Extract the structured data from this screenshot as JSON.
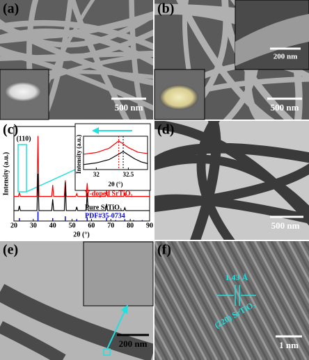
{
  "panels": [
    {
      "label": "(a)",
      "scale_bar": "500 nm"
    },
    {
      "label": "(b)",
      "scale_bar": "500 nm",
      "inset_scale_bar": "200 nm"
    },
    {
      "label": "(c)"
    },
    {
      "label": "(d)",
      "scale_bar": "500 nm"
    },
    {
      "label": "(e)",
      "scale_bar": "200 nm"
    },
    {
      "label": "(f)",
      "scale_bar": "1 nm",
      "annotations": [
        "1.43 Å",
        "(220) SrTiO₃"
      ]
    }
  ],
  "chart_data": [
    {
      "type": "line",
      "xlabel": "2θ (°)",
      "ylabel": "Intensity (a.u.)",
      "annotation": "(110)",
      "x": [
        20,
        22.3,
        22.8,
        23.3,
        31.9,
        32.4,
        32.9,
        39.5,
        40,
        40.5,
        46,
        46.5,
        47,
        51.9,
        52.4,
        52.9,
        57.3,
        57.8,
        58.3,
        67.3,
        67.8,
        68.3,
        76.7,
        77.2,
        77.7,
        90
      ],
      "xlim": [
        20,
        90
      ],
      "xticks": [
        20,
        30,
        40,
        50,
        60,
        70,
        80,
        90
      ],
      "ylim": [
        0,
        10
      ],
      "series": [
        {
          "name": "V-doped SrTiO₃",
          "color": "#ff0000",
          "values": [
            2.6,
            2.6,
            3.0,
            2.6,
            2.6,
            9.0,
            2.6,
            2.6,
            3.8,
            2.6,
            2.6,
            4.3,
            2.6,
            2.6,
            2.9,
            2.6,
            2.6,
            4.0,
            2.6,
            2.6,
            3.2,
            2.6,
            2.6,
            2.9,
            2.6,
            2.6
          ]
        },
        {
          "name": "Pure SrTiO₃",
          "color": "#000000",
          "values": [
            1.1,
            1.1,
            1.6,
            1.1,
            1.1,
            5.0,
            1.1,
            1.1,
            2.3,
            1.1,
            1.1,
            4.1,
            1.1,
            1.1,
            1.5,
            1.1,
            1.1,
            3.0,
            1.1,
            1.1,
            1.8,
            1.1,
            1.1,
            1.4,
            1.1,
            1.1
          ]
        },
        {
          "name": "PDF#35-0734",
          "color": "#0000ff",
          "style": "stem",
          "x": [
            22.8,
            32.4,
            40,
            46.5,
            52.4,
            57.8,
            67.8,
            72.5,
            77.2,
            81.7,
            86.2
          ],
          "values": [
            0.3,
            1.0,
            0.3,
            0.5,
            0.2,
            0.4,
            0.3,
            0.1,
            0.2,
            0.1,
            0.1
          ]
        }
      ]
    },
    {
      "type": "line",
      "xlabel": "2θ (°)",
      "ylabel": "Intensity (a.u.)",
      "xlim": [
        31.8,
        32.8
      ],
      "xticks": [
        32.0,
        32.5
      ],
      "ylim": [
        0,
        10
      ],
      "series": [
        {
          "color": "#ff0000",
          "x": [
            31.8,
            32.0,
            32.2,
            32.35,
            32.5,
            32.65,
            32.8
          ],
          "values": [
            4.6,
            5.1,
            6.4,
            8.6,
            6.6,
            5.2,
            4.8
          ],
          "peak": 32.35
        },
        {
          "color": "#000000",
          "x": [
            31.8,
            32.0,
            32.2,
            32.42,
            32.6,
            32.7,
            32.8
          ],
          "values": [
            1.5,
            2.0,
            3.0,
            5.4,
            3.2,
            2.3,
            1.8
          ],
          "peak": 32.42
        }
      ]
    }
  ]
}
